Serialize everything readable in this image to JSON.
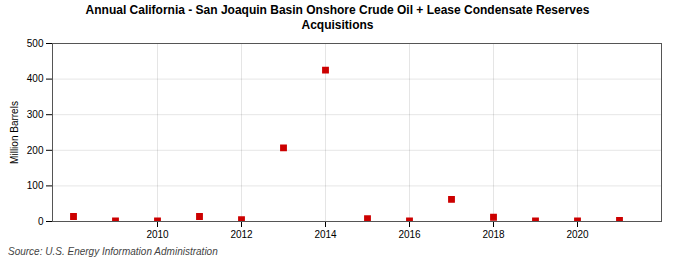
{
  "chart_data": {
    "type": "scatter",
    "title": "Annual California - San Joaquin Basin Onshore Crude Oil + Lease Condensate Reserves",
    "subtitle": "Acquisitions",
    "ylabel": "Million Barrels",
    "annotations": [
      "Source: U.S. Energy Information Administration"
    ],
    "x": [
      2008,
      2009,
      2010,
      2011,
      2012,
      2013,
      2014,
      2015,
      2016,
      2017,
      2018,
      2019,
      2020,
      2021
    ],
    "values": [
      14,
      2,
      2,
      14,
      5,
      207,
      425,
      8,
      2,
      62,
      12,
      2,
      2,
      3
    ],
    "color": "#cc0000",
    "marker": "square",
    "xlim": [
      2007.5,
      2022.0
    ],
    "xticks": [
      2010,
      2012,
      2014,
      2016,
      2018,
      2020
    ],
    "ylim": [
      0,
      500
    ],
    "yticks": [
      0,
      100,
      200,
      300,
      400,
      500
    ],
    "grid": true
  }
}
